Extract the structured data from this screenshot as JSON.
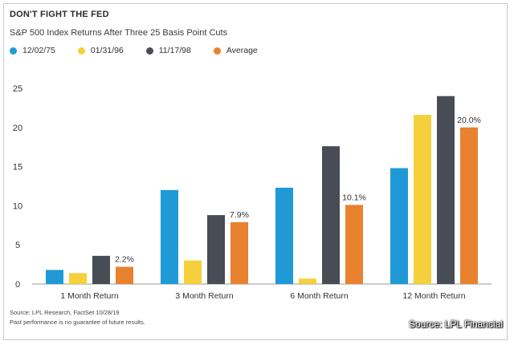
{
  "title": "DON'T FIGHT THE FED",
  "subtitle": "S&P 500 Index Returns After Three 25 Basis Point Cuts",
  "footnote": {
    "line1": "Source: LPL Research, FactSet  10/28/19",
    "line2": "Past performance is no guarantee of future results."
  },
  "source_credit": "Source: LPL Financial",
  "chart_data": {
    "type": "bar",
    "categories": [
      "1 Month Return",
      "3 Month Return",
      "6 Month Return",
      "12 Month Return"
    ],
    "series": [
      {
        "name": "12/02/75",
        "color": "#1f9ad6",
        "values": [
          1.8,
          12.0,
          12.3,
          14.8
        ]
      },
      {
        "name": "01/31/96",
        "color": "#f6d03c",
        "values": [
          1.4,
          3.0,
          0.7,
          21.6
        ]
      },
      {
        "name": "11/17/98",
        "color": "#474c55",
        "values": [
          3.6,
          8.8,
          17.6,
          24.0
        ]
      },
      {
        "name": "Average",
        "color": "#e8822f",
        "values": [
          2.2,
          7.9,
          10.1,
          20.0
        ]
      }
    ],
    "data_labels": [
      "2.2%",
      "7.9%",
      "10.1%",
      "20.0%"
    ],
    "yticks": [
      "0",
      "5",
      "10",
      "15",
      "20",
      "25"
    ],
    "ylim": [
      0,
      25
    ],
    "grid": false,
    "legend_position": "top-left"
  }
}
